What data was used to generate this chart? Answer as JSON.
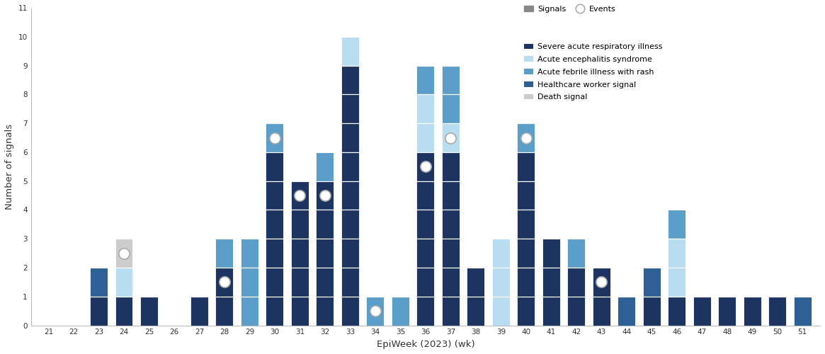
{
  "weeks": [
    21,
    22,
    23,
    24,
    25,
    26,
    27,
    28,
    29,
    30,
    31,
    32,
    33,
    34,
    35,
    36,
    37,
    38,
    39,
    40,
    41,
    42,
    43,
    44,
    45,
    46,
    47,
    48,
    49,
    50,
    51
  ],
  "sari": [
    0,
    0,
    1,
    1,
    1,
    0,
    1,
    2,
    0,
    6,
    5,
    5,
    9,
    0,
    0,
    6,
    6,
    2,
    0,
    6,
    3,
    2,
    2,
    0,
    1,
    1,
    1,
    1,
    1,
    1,
    0
  ],
  "aes": [
    0,
    0,
    0,
    1,
    0,
    0,
    0,
    0,
    0,
    0,
    0,
    0,
    1,
    0,
    0,
    2,
    1,
    0,
    3,
    0,
    0,
    0,
    0,
    0,
    0,
    2,
    0,
    0,
    0,
    0,
    0
  ],
  "afr": [
    0,
    0,
    0,
    0,
    0,
    0,
    0,
    1,
    3,
    1,
    0,
    1,
    0,
    1,
    1,
    1,
    2,
    0,
    0,
    1,
    0,
    1,
    0,
    0,
    0,
    1,
    0,
    0,
    0,
    0,
    0
  ],
  "hcw": [
    0,
    0,
    1,
    0,
    0,
    0,
    0,
    0,
    0,
    0,
    0,
    0,
    0,
    0,
    0,
    0,
    0,
    0,
    0,
    0,
    0,
    0,
    0,
    1,
    1,
    0,
    0,
    0,
    0,
    0,
    1
  ],
  "death": [
    0,
    0,
    0,
    1,
    0,
    0,
    0,
    0,
    0,
    0,
    0,
    0,
    0,
    0,
    0,
    0,
    0,
    0,
    0,
    0,
    0,
    0,
    0,
    0,
    0,
    0,
    0,
    0,
    0,
    0,
    0
  ],
  "events": {
    "24": 2.5,
    "28": 1.5,
    "30": 6.5,
    "31": 4.5,
    "32": 4.5,
    "34": 0.5,
    "36": 5.5,
    "37": 6.5,
    "40": 6.5,
    "43": 1.5
  },
  "colors": {
    "sari": "#1d3461",
    "aes": "#b8ddf0",
    "afr": "#5b9ec9",
    "hcw": "#2e6096",
    "death": "#cccccc"
  },
  "legend_labels": {
    "sari": "Severe acute respiratory illness",
    "aes": "Acute encephalitis syndrome",
    "afr": "Acute febrile illness with rash",
    "hcw": "Healthcare worker signal",
    "death": "Death signal"
  },
  "ylim": [
    0,
    11
  ],
  "ylabel": "Number of signals",
  "xlabel": "EpiWeek (2023) (wk)",
  "background_color": "#ffffff",
  "bar_width": 0.7
}
